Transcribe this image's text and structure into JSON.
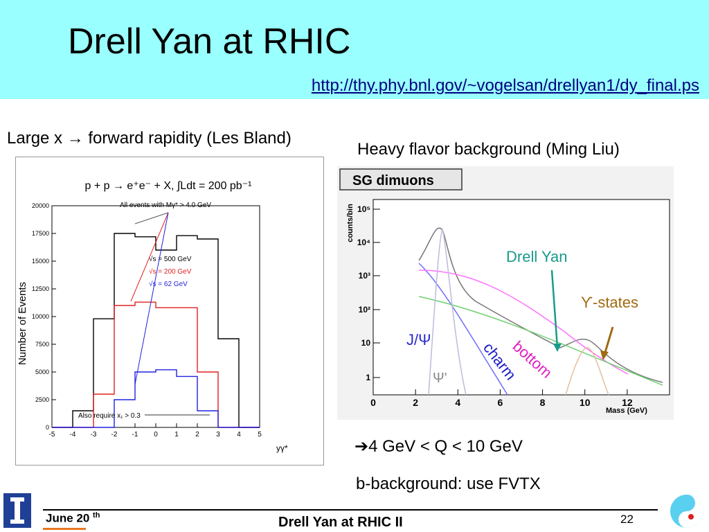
{
  "slide": {
    "title": "Drell Yan at RHIC",
    "url": "http://thy.phy.bnl.gov/~vogelsan/drellyan1/dy_final.ps",
    "caption_left": "Large x → forward rapidity (Les Bland)",
    "caption_right": "Heavy flavor background (Ming Liu)",
    "note1": "➔4 GeV < Q < 10 GeV",
    "note2": "b-background: use FVTX"
  },
  "footer": {
    "date": "June 20",
    "date_sup": "th",
    "title": "Drell Yan at RHIC II",
    "page": "22"
  },
  "left_plot": {
    "header": "p + p → e⁺e⁻ + X, ∫Ldt = 200 pb⁻¹",
    "ylabel": "Number of Events",
    "xlabel": "yγ*",
    "annotation_top": "All events with Mγ* > 4.0 GeV",
    "annotation_bottom": "Also require x₁ > 0.3",
    "legend": [
      "√s = 500 GeV",
      "√s = 200 GeV",
      "√s = 62 GeV"
    ],
    "colors": [
      "#000000",
      "#e02020",
      "#2020e0"
    ],
    "yticks": [
      "0",
      "2500",
      "5000",
      "7500",
      "10000",
      "12500",
      "15000",
      "17500",
      "20000"
    ],
    "xticks": [
      "-5",
      "-4",
      "-3",
      "-2",
      "-1",
      "0",
      "1",
      "2",
      "3",
      "4",
      "5"
    ]
  },
  "right_plot": {
    "title": "SG dimuons",
    "ylabel": "counts/bin",
    "xlabel": "Mass (GeV)",
    "xticks": [
      "0",
      "2",
      "4",
      "6",
      "8",
      "10",
      "12"
    ],
    "yticks": [
      "1",
      "10",
      "10²",
      "10³",
      "10⁴",
      "10⁵"
    ],
    "labels": {
      "drell_yan": "Drell Yan",
      "upsilon": "ϒ-states",
      "jpsi": "J/Ψ",
      "psi_prime": "Ψ'",
      "charm": "charm",
      "bottom": "bottom"
    },
    "colors": {
      "drell_yan": "#1a9a8a",
      "upsilon": "#a06a10",
      "jpsi": "#2a2ad0",
      "charm": "#1a1ac8",
      "bottom": "#e020c0",
      "psi_prime": "#888888"
    }
  },
  "chart_data": [
    {
      "type": "bar",
      "title": "",
      "xlabel": "yγ*",
      "ylabel": "Number of Events",
      "x": [
        -5,
        -4,
        -3,
        -2,
        -1,
        0,
        1,
        2,
        3,
        4,
        5
      ],
      "ylim": [
        0,
        20000
      ],
      "xlim": [
        -5,
        5
      ],
      "series": [
        {
          "name": "√s = 500 GeV",
          "values": [
            0,
            1500,
            9800,
            17500,
            17200,
            16000,
            17300,
            17000,
            8000,
            0,
            0
          ]
        },
        {
          "name": "√s = 200 GeV",
          "values": [
            0,
            0,
            3000,
            11000,
            11300,
            10800,
            10800,
            5000,
            0,
            0,
            0
          ]
        },
        {
          "name": "√s = 62 GeV",
          "values": [
            0,
            0,
            0,
            2500,
            5000,
            5200,
            4600,
            1500,
            0,
            0,
            0
          ]
        }
      ],
      "legend": "center"
    },
    {
      "type": "line",
      "title": "SG dimuons",
      "xlabel": "Mass (GeV)",
      "ylabel": "counts/bin",
      "log_y": true,
      "xlim": [
        0,
        14
      ],
      "ylim": [
        0.3,
        200000
      ]
    }
  ]
}
